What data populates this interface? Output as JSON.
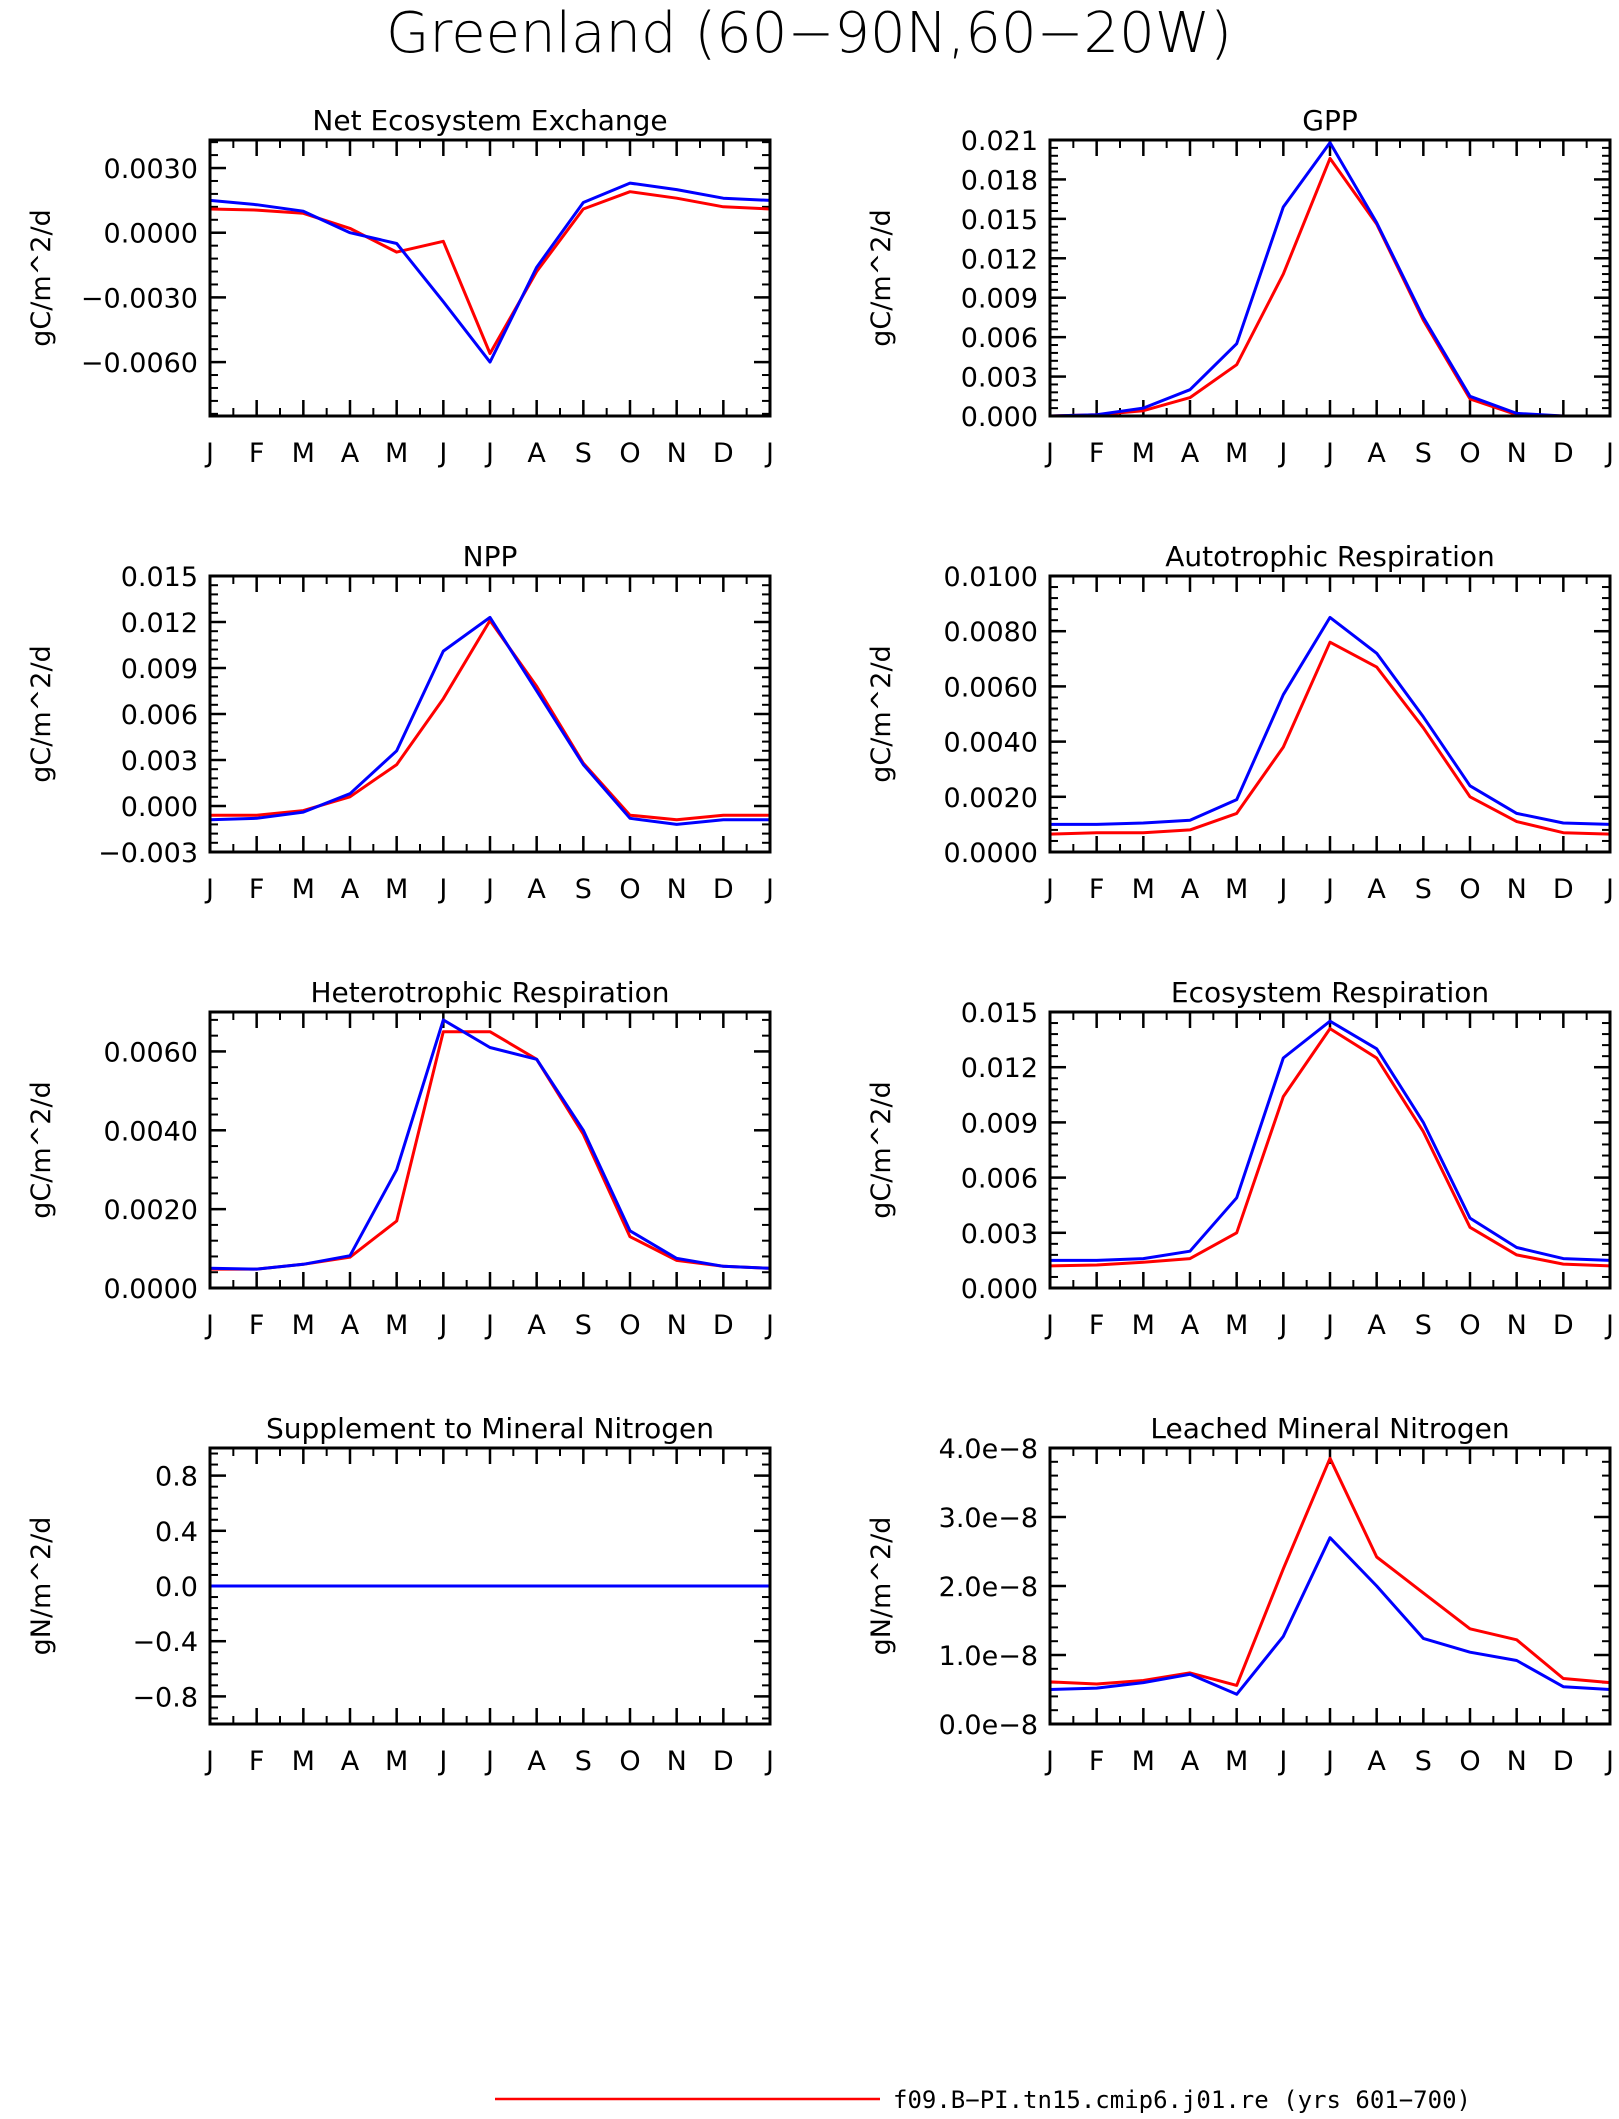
{
  "figure_title": "Greenland (60−90N,60−20W)",
  "legend": {
    "label": "f09.B−PI.tn15.cmip6.j01.re (yrs 601−700)",
    "color": "#ff0000"
  },
  "series_colors": [
    "#ff0000",
    "#0000ff"
  ],
  "chart_data": [
    {
      "type": "line",
      "title": "Net Ecosystem Exchange",
      "ylabel": "gC/m^2/d",
      "categories": [
        "J",
        "F",
        "M",
        "A",
        "M",
        "J",
        "J",
        "A",
        "S",
        "O",
        "N",
        "D",
        "J"
      ],
      "ylim": [
        -0.0085,
        0.0043
      ],
      "yticks": [
        0.003,
        0.0,
        -0.003,
        -0.006
      ],
      "ytick_labels": [
        "0.0030",
        "0.0000",
        "−0.0030",
        "−0.0060"
      ],
      "yminor": 0.0006,
      "series": [
        {
          "color": "#ff0000",
          "values": [
            0.0011,
            0.00105,
            0.0009,
            0.0002,
            -0.0009,
            -0.0004,
            -0.0056,
            -0.0018,
            0.0011,
            0.0019,
            0.0016,
            0.0012,
            0.0011
          ]
        },
        {
          "color": "#0000ff",
          "values": [
            0.0015,
            0.0013,
            0.001,
            0.0,
            -0.0005,
            -0.0032,
            -0.006,
            -0.0016,
            0.0014,
            0.0023,
            0.002,
            0.0016,
            0.0015
          ]
        }
      ]
    },
    {
      "type": "line",
      "title": "GPP",
      "ylabel": "gC/m^2/d",
      "categories": [
        "J",
        "F",
        "M",
        "A",
        "M",
        "J",
        "J",
        "A",
        "S",
        "O",
        "N",
        "D",
        "J"
      ],
      "ylim": [
        0.0,
        0.021
      ],
      "yticks": [
        0.0,
        0.003,
        0.006,
        0.009,
        0.012,
        0.015,
        0.018,
        0.021
      ],
      "ytick_labels": [
        "0.000",
        "0.003",
        "0.006",
        "0.009",
        "0.012",
        "0.015",
        "0.018",
        "0.021"
      ],
      "yminor": 0.0006,
      "series": [
        {
          "color": "#ff0000",
          "values": [
            0.0,
            0.0001,
            0.0004,
            0.0014,
            0.0039,
            0.0108,
            0.0196,
            0.0146,
            0.0073,
            0.0013,
            0.0001,
            0.0,
            0.0
          ]
        },
        {
          "color": "#0000ff",
          "values": [
            0.0,
            0.0001,
            0.0006,
            0.002,
            0.0055,
            0.0159,
            0.0208,
            0.0147,
            0.0075,
            0.0015,
            0.0002,
            0.0,
            0.0
          ]
        }
      ]
    },
    {
      "type": "line",
      "title": "NPP",
      "ylabel": "gC/m^2/d",
      "categories": [
        "J",
        "F",
        "M",
        "A",
        "M",
        "J",
        "J",
        "A",
        "S",
        "O",
        "N",
        "D",
        "J"
      ],
      "ylim": [
        -0.003,
        0.015
      ],
      "yticks": [
        -0.003,
        0.0,
        0.003,
        0.006,
        0.009,
        0.012,
        0.015
      ],
      "ytick_labels": [
        "−0.003",
        "0.000",
        "0.003",
        "0.006",
        "0.009",
        "0.012",
        "0.015"
      ],
      "yminor": 0.0006,
      "series": [
        {
          "color": "#ff0000",
          "values": [
            -0.0006,
            -0.0006,
            -0.0003,
            0.0006,
            0.0027,
            0.007,
            0.0121,
            0.0078,
            0.0028,
            -0.0006,
            -0.0009,
            -0.0006,
            -0.0006
          ]
        },
        {
          "color": "#0000ff",
          "values": [
            -0.0009,
            -0.0008,
            -0.0004,
            0.0008,
            0.0036,
            0.0101,
            0.0123,
            0.0075,
            0.0027,
            -0.0008,
            -0.0012,
            -0.0009,
            -0.0009
          ]
        }
      ]
    },
    {
      "type": "line",
      "title": "Autotrophic Respiration",
      "ylabel": "gC/m^2/d",
      "categories": [
        "J",
        "F",
        "M",
        "A",
        "M",
        "J",
        "J",
        "A",
        "S",
        "O",
        "N",
        "D",
        "J"
      ],
      "ylim": [
        0.0,
        0.01
      ],
      "yticks": [
        0.0,
        0.002,
        0.004,
        0.006,
        0.008,
        0.01
      ],
      "ytick_labels": [
        "0.0000",
        "0.0020",
        "0.0040",
        "0.0060",
        "0.0080",
        "0.0100"
      ],
      "yminor": 0.0004,
      "series": [
        {
          "color": "#ff0000",
          "values": [
            0.00065,
            0.0007,
            0.0007,
            0.0008,
            0.0014,
            0.0038,
            0.0076,
            0.0067,
            0.0045,
            0.002,
            0.0011,
            0.0007,
            0.00065
          ]
        },
        {
          "color": "#0000ff",
          "values": [
            0.001,
            0.001,
            0.00105,
            0.00115,
            0.0019,
            0.0057,
            0.0085,
            0.0072,
            0.0049,
            0.0024,
            0.0014,
            0.00105,
            0.001
          ]
        }
      ]
    },
    {
      "type": "line",
      "title": "Heterotrophic Respiration",
      "ylabel": "gC/m^2/d",
      "categories": [
        "J",
        "F",
        "M",
        "A",
        "M",
        "J",
        "J",
        "A",
        "S",
        "O",
        "N",
        "D",
        "J"
      ],
      "ylim": [
        0.0,
        0.007
      ],
      "yticks": [
        0.0,
        0.002,
        0.004,
        0.006
      ],
      "ytick_labels": [
        "0.0000",
        "0.0020",
        "0.0040",
        "0.0060"
      ],
      "yminor": 0.0004,
      "series": [
        {
          "color": "#ff0000",
          "values": [
            0.00048,
            0.00048,
            0.0006,
            0.00078,
            0.0017,
            0.0065,
            0.0065,
            0.0058,
            0.0039,
            0.0013,
            0.0007,
            0.00055,
            0.0005
          ]
        },
        {
          "color": "#0000ff",
          "values": [
            0.0005,
            0.00048,
            0.0006,
            0.00082,
            0.003,
            0.0068,
            0.0061,
            0.0058,
            0.004,
            0.00145,
            0.00075,
            0.00055,
            0.0005
          ]
        }
      ]
    },
    {
      "type": "line",
      "title": "Ecosystem Respiration",
      "ylabel": "gC/m^2/d",
      "categories": [
        "J",
        "F",
        "M",
        "A",
        "M",
        "J",
        "J",
        "A",
        "S",
        "O",
        "N",
        "D",
        "J"
      ],
      "ylim": [
        0.0,
        0.015
      ],
      "yticks": [
        0.0,
        0.003,
        0.006,
        0.009,
        0.012,
        0.015
      ],
      "ytick_labels": [
        "0.000",
        "0.003",
        "0.006",
        "0.009",
        "0.012",
        "0.015"
      ],
      "yminor": 0.0006,
      "series": [
        {
          "color": "#ff0000",
          "values": [
            0.0012,
            0.00125,
            0.0014,
            0.0016,
            0.003,
            0.0104,
            0.0141,
            0.0125,
            0.0085,
            0.0033,
            0.0018,
            0.0013,
            0.0012
          ]
        },
        {
          "color": "#0000ff",
          "values": [
            0.0015,
            0.0015,
            0.0016,
            0.002,
            0.0049,
            0.0125,
            0.0145,
            0.013,
            0.009,
            0.0038,
            0.0022,
            0.0016,
            0.0015
          ]
        }
      ]
    },
    {
      "type": "line",
      "title": "Supplement to Mineral Nitrogen",
      "ylabel": "gN/m^2/d",
      "categories": [
        "J",
        "F",
        "M",
        "A",
        "M",
        "J",
        "J",
        "A",
        "S",
        "O",
        "N",
        "D",
        "J"
      ],
      "ylim": [
        -1.0,
        1.0
      ],
      "yticks": [
        -0.8,
        -0.4,
        0.0,
        0.4,
        0.8
      ],
      "ytick_labels": [
        "−0.8",
        "−0.4",
        "0.0",
        "0.4",
        "0.8"
      ],
      "yminor": 0.08,
      "series": [
        {
          "color": "#ff0000",
          "values": [
            0,
            0,
            0,
            0,
            0,
            0,
            0,
            0,
            0,
            0,
            0,
            0,
            0
          ]
        },
        {
          "color": "#0000ff",
          "values": [
            0,
            0,
            0,
            0,
            0,
            0,
            0,
            0,
            0,
            0,
            0,
            0,
            0
          ]
        }
      ]
    },
    {
      "type": "line",
      "title": "Leached Mineral Nitrogen",
      "ylabel": "gN/m^2/d",
      "categories": [
        "J",
        "F",
        "M",
        "A",
        "M",
        "J",
        "J",
        "A",
        "S",
        "O",
        "N",
        "D",
        "J"
      ],
      "ylim": [
        0.0,
        4e-08
      ],
      "yticks": [
        0.0,
        1e-08,
        2e-08,
        3e-08,
        4e-08
      ],
      "ytick_labels": [
        "0.0e−8",
        "1.0e−8",
        "2.0e−8",
        "3.0e−8",
        "4.0e−8"
      ],
      "yminor": 2e-09,
      "series": [
        {
          "color": "#ff0000",
          "values": [
            6.1e-09,
            5.8e-09,
            6.3e-09,
            7.4e-09,
            5.6e-09,
            2.25e-08,
            3.85e-08,
            2.42e-08,
            1.9e-08,
            1.38e-08,
            1.22e-08,
            6.6e-09,
            6e-09
          ]
        },
        {
          "color": "#0000ff",
          "values": [
            5e-09,
            5.2e-09,
            6e-09,
            7.2e-09,
            4.3e-09,
            1.27e-08,
            2.7e-08,
            2e-08,
            1.24e-08,
            1.04e-08,
            9.2e-09,
            5.4e-09,
            5e-09
          ]
        }
      ]
    }
  ]
}
